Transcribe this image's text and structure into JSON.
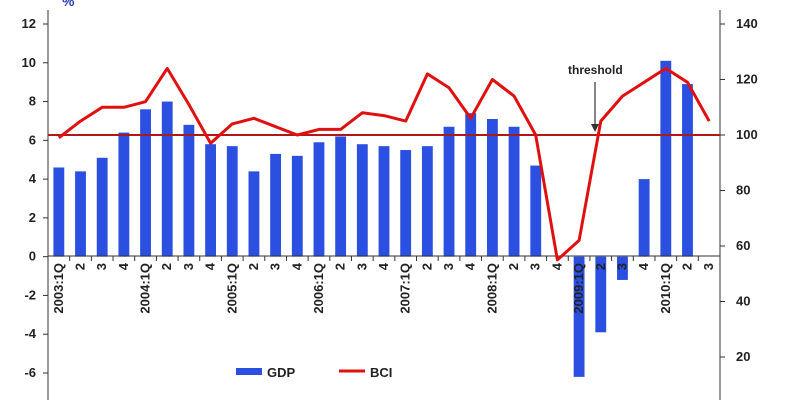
{
  "chart_data": {
    "type": "bar-line",
    "title": "",
    "unit_label": "%",
    "categories": [
      "2003:1Q",
      "2",
      "3",
      "4",
      "2004:1Q",
      "2",
      "3",
      "4",
      "2005:1Q",
      "2",
      "3",
      "4",
      "2006:1Q",
      "2",
      "3",
      "4",
      "2007:1Q",
      "2",
      "3",
      "4",
      "2008:1Q",
      "2",
      "3",
      "4",
      "2009:1Q",
      "2",
      "3",
      "4",
      "2010:1Q",
      "2",
      "3"
    ],
    "series": [
      {
        "name": "GDP",
        "type": "bar",
        "axis": "left",
        "color": "#2b4fe0",
        "values": [
          4.6,
          4.4,
          5.1,
          6.4,
          7.6,
          8.0,
          6.8,
          5.8,
          5.7,
          4.4,
          5.3,
          5.2,
          5.9,
          6.2,
          5.8,
          5.7,
          5.5,
          5.7,
          6.7,
          7.4,
          7.1,
          6.7,
          4.7,
          null,
          -6.2,
          -3.9,
          -1.2,
          4.0,
          10.1,
          8.9,
          null
        ]
      },
      {
        "name": "BCI",
        "type": "line",
        "axis": "right",
        "color": "#e01010",
        "values": [
          99,
          105,
          110,
          110,
          112,
          124,
          111,
          97,
          104,
          106,
          103,
          100,
          102,
          102,
          108,
          107,
          105,
          122,
          117,
          106,
          120,
          114,
          100,
          55,
          62,
          105,
          114,
          119,
          124,
          119,
          105
        ]
      }
    ],
    "left_axis": {
      "min": -7,
      "max": 12,
      "ticks": [
        -6,
        -4,
        -2,
        0,
        2,
        4,
        6,
        8,
        10,
        12
      ]
    },
    "right_axis": {
      "min": 7,
      "max": 140,
      "ticks": [
        20,
        40,
        60,
        80,
        100,
        120,
        140
      ]
    },
    "threshold": {
      "value": 100,
      "label": "threshold",
      "color": "#b01818"
    },
    "legend_position": "bottom",
    "grid": false
  }
}
